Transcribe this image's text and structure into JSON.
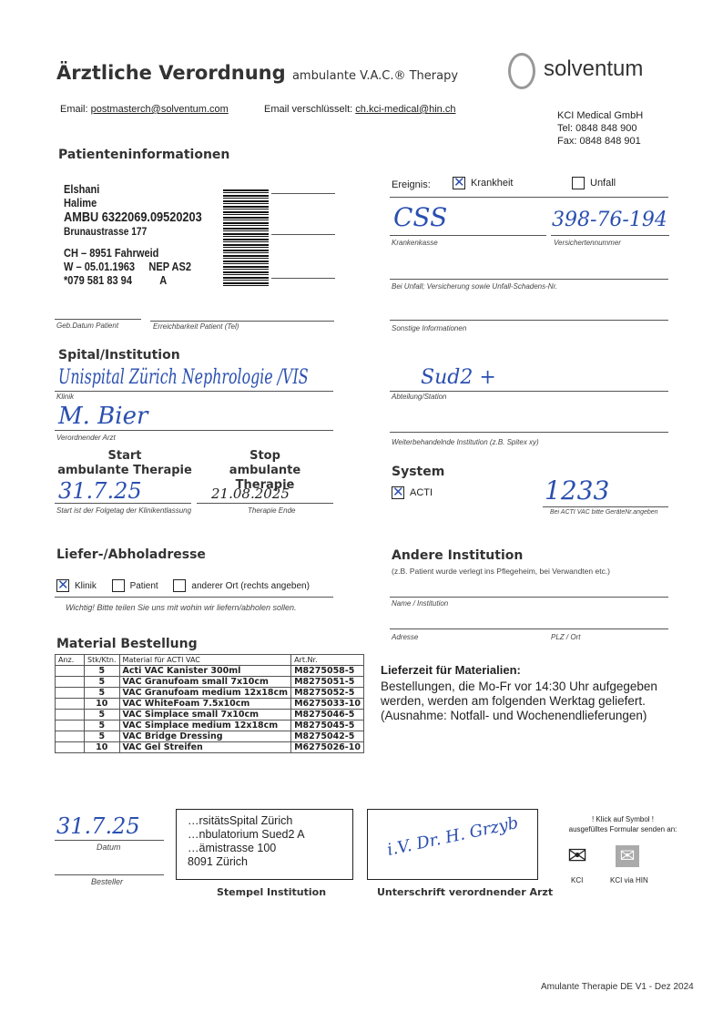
{
  "header": {
    "title": "Ärztliche Verordnung",
    "subtitle": "ambulante V.A.C.® Therapy",
    "brand": "solventum",
    "email_label": "Email:",
    "email": "postmasterch@solventum.com",
    "email_enc_label": "Email verschlüsselt:",
    "email_enc": "ch.kci-medical@hin.ch",
    "company": "KCI Medical GmbH",
    "tel": "Tel: 0848 848 900",
    "fax": "Fax: 0848 848 901"
  },
  "patient": {
    "heading": "Patienteninformationen",
    "label": [
      "Elshani",
      "Halime",
      "AMBU  6322069.09520203",
      "Brunaustrasse 177",
      "CH – 8951 Fahrweid",
      "W – 05.01.1963",
      "NEP AS2",
      "*079 581 83 94",
      "A"
    ],
    "dob_label": "Geb.Datum Patient",
    "tel_label": "Erreichbarkeit Patient (Tel)"
  },
  "event": {
    "label": "Ereignis:",
    "krankheit": "Krankheit",
    "krankheit_checked": true,
    "unfall": "Unfall",
    "unfall_checked": false,
    "kasse_value": "CSS",
    "kasse_label": "Krankenkasse",
    "vers_value": "398-76-194",
    "vers_label": "Versichertennummer",
    "unfall_label": "Bei Unfall; Versicherung sowie Unfall-Schadens-Nr.",
    "sonstige_label": "Sonstige Informationen"
  },
  "spital": {
    "heading": "Spital/Institution",
    "klinik_value": "Unispital Zürich Nephrologie /VIS",
    "klinik_label": "Klinik",
    "abteilung_value": "Sud2 +",
    "abteilung_label": "Abteilung/Station",
    "arzt_value": "M. Bier",
    "arzt_label": "Verordnender Arzt",
    "weiter_label": "Weiterbehandelnde Institution (z.B. Spitex xy)"
  },
  "therapy": {
    "start_h1": "Start",
    "start_h2": "ambulante Therapie",
    "stop_h1": "Stop",
    "stop_h2": "ambulante Therapie",
    "start_value": "31.7.25",
    "stop_value": "21.08.2025",
    "start_note": "Start ist der Folgetag der Klinikentlassung",
    "stop_note": "Therapie Ende"
  },
  "system": {
    "heading": "System",
    "acti": "ACTI",
    "acti_checked": true,
    "device_value": "1233",
    "device_note": "Bei ACTI VAC bitte GeräteNr.angeben"
  },
  "delivery": {
    "heading": "Liefer-/Abholadresse",
    "klinik": "Klinik",
    "klinik_checked": true,
    "patient": "Patient",
    "other": "anderer Ort  (rechts angeben)",
    "note": "Wichtig! Bitte teilen Sie uns mit wohin wir liefern/abholen sollen."
  },
  "other_inst": {
    "heading": "Andere Institution",
    "note": "(z.B. Patient wurde verlegt ins Pflegeheim, bei Verwandten etc.)",
    "name_label": "Name / Institution",
    "adresse_label": "Adresse",
    "plz_label": "PLZ / Ort"
  },
  "material": {
    "heading": "Material Bestellung",
    "columns": [
      "Anz.",
      "Stk/Ktn.",
      "Material für ACTI VAC",
      "Art.Nr."
    ],
    "rows": [
      [
        "",
        "5",
        "Acti VAC Kanister 300ml",
        "M8275058-5"
      ],
      [
        "",
        "5",
        "VAC Granufoam small 7x10cm",
        "M8275051-5"
      ],
      [
        "",
        "5",
        "VAC Granufoam medium 12x18cm",
        "M8275052-5"
      ],
      [
        "",
        "10",
        "VAC WhiteFoam 7.5x10cm",
        "M6275033-10"
      ],
      [
        "",
        "5",
        "VAC Simplace small 7x10cm",
        "M8275046-5"
      ],
      [
        "",
        "5",
        "VAC Simplace medium 12x18cm",
        "M8275045-5"
      ],
      [
        "",
        "5",
        "VAC Bridge Dressing",
        "M8275042-5"
      ],
      [
        "",
        "10",
        "VAC Gel Streifen",
        "M6275026-10"
      ]
    ]
  },
  "lieferzeit": {
    "heading": "Lieferzeit für Materialien:",
    "text": [
      "Bestellungen, die Mo-Fr vor 14:30 Uhr aufgegeben",
      "werden, werden am folgenden Werktag geliefert.",
      "(Ausnahme: Notfall- und Wochenendlieferungen)"
    ]
  },
  "footer": {
    "datum_value": "31.7.25",
    "datum_label": "Datum",
    "besteller_label": "Besteller",
    "stamp": [
      "…rsitätsSpital Zürich",
      "…nbulatorium Sued2 A",
      "…ämistrasse 100",
      "8091 Zürich"
    ],
    "stamp_label": "Stempel Institution",
    "signature_value": "i.V. Dr. H. Grzyb",
    "signature_label": "Unterschrift verordnender Arzt",
    "send_note1": "! Klick auf Symbol !",
    "send_note2": "ausgefülltes Formular senden an:",
    "kci": "KCI",
    "kci_hin": "KCI via HIN",
    "version": "Amulante Therapie DE V1 - Dez 2024"
  }
}
